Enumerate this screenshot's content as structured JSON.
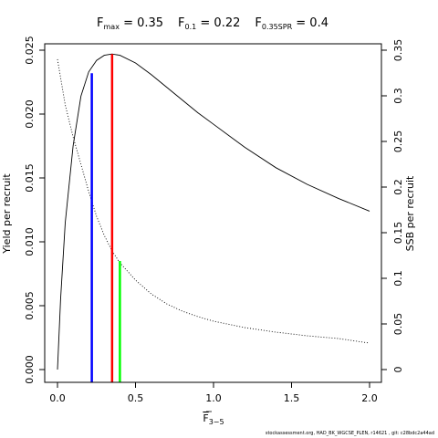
{
  "chart_data": {
    "type": "line",
    "title_parts": [
      {
        "base": "F",
        "sub": "max",
        "value": " = 0.35"
      },
      {
        "base": "F",
        "sub": "0.1",
        "value": " = 0.22"
      },
      {
        "base": "F",
        "sub": "0.35SPR",
        "value": " = 0.4"
      }
    ],
    "xlabel": "F",
    "xlabel_sub": "3−5",
    "ylabel": "Yield per recruit",
    "ylabel_right": "SSB per recruit",
    "xlim": [
      0,
      2
    ],
    "ylim": [
      0,
      0.025
    ],
    "ylim_right": [
      0,
      0.35
    ],
    "x_ticks": [
      "0.0",
      "0.5",
      "1.0",
      "1.5",
      "2.0"
    ],
    "y_ticks": [
      "0.000",
      "0.005",
      "0.010",
      "0.015",
      "0.020",
      "0.025"
    ],
    "y_ticks_right": [
      "0",
      "0.05",
      "0.1",
      "0.15",
      "0.2",
      "0.25",
      "0.3",
      "0.35"
    ],
    "series": [
      {
        "axis": "left",
        "style": "solid",
        "color": "#000000",
        "x": [
          0,
          0.02,
          0.05,
          0.1,
          0.15,
          0.2,
          0.25,
          0.3,
          0.35,
          0.4,
          0.5,
          0.6,
          0.7,
          0.8,
          0.9,
          1.0,
          1.2,
          1.4,
          1.6,
          1.8,
          2.0
        ],
        "y": [
          0,
          0.0055,
          0.0115,
          0.0175,
          0.0214,
          0.0233,
          0.0242,
          0.0246,
          0.0247,
          0.0246,
          0.024,
          0.0231,
          0.0221,
          0.0211,
          0.0201,
          0.0192,
          0.0174,
          0.0158,
          0.0145,
          0.0134,
          0.0124
        ]
      },
      {
        "axis": "right",
        "style": "dotted",
        "color": "#000000",
        "x": [
          0,
          0.05,
          0.1,
          0.15,
          0.2,
          0.25,
          0.3,
          0.35,
          0.4,
          0.5,
          0.6,
          0.7,
          0.8,
          0.9,
          1.0,
          1.2,
          1.4,
          1.6,
          1.8,
          2.0
        ],
        "y": [
          0.34,
          0.29,
          0.255,
          0.225,
          0.195,
          0.168,
          0.147,
          0.13,
          0.117,
          0.098,
          0.083,
          0.072,
          0.064,
          0.058,
          0.053,
          0.046,
          0.041,
          0.037,
          0.034,
          0.029
        ]
      }
    ],
    "reference_lines": [
      {
        "name": "F0.1",
        "x": 0.22,
        "y_top": 0.0232,
        "axis": "left",
        "color": "#0000ff"
      },
      {
        "name": "Fmax",
        "x": 0.35,
        "y_top": 0.0247,
        "axis": "left",
        "color": "#ff0000"
      },
      {
        "name": "F0.35SPR",
        "x": 0.4,
        "y_top": 0.119,
        "axis": "right",
        "color": "#00ff00"
      }
    ],
    "grid": false,
    "legend": "none"
  },
  "footer": "stockassessment.org, HAD_BK_WGCSE_PLEN, r14621 , git: c28bdc2a44ad"
}
